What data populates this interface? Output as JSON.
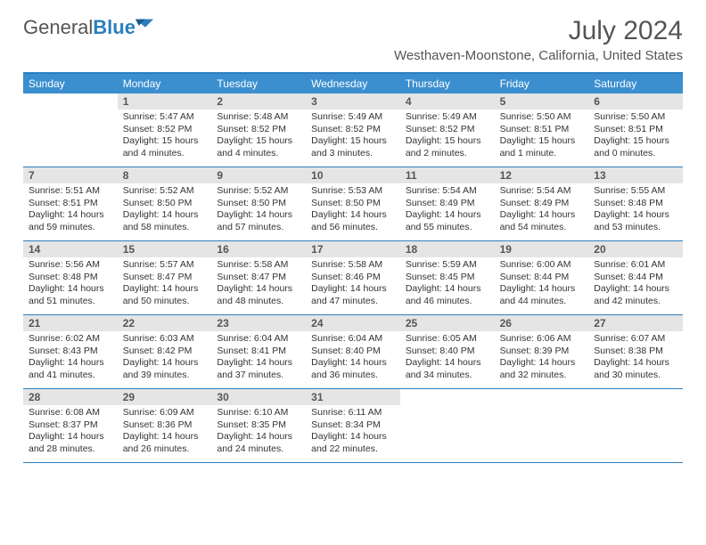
{
  "logo": {
    "part1": "General",
    "part2": "Blue"
  },
  "title": "July 2024",
  "location": "Westhaven-Moonstone, California, United States",
  "colors": {
    "accent": "#3b8fcf",
    "border": "#2b7fbf",
    "dayhead_bg": "#e5e5e5",
    "text": "#333333"
  },
  "dow": [
    "Sunday",
    "Monday",
    "Tuesday",
    "Wednesday",
    "Thursday",
    "Friday",
    "Saturday"
  ],
  "first_weekday_index": 1,
  "days_in_month": 31,
  "days": {
    "1": {
      "sunrise": "5:47 AM",
      "sunset": "8:52 PM",
      "daylight": "15 hours and 4 minutes."
    },
    "2": {
      "sunrise": "5:48 AM",
      "sunset": "8:52 PM",
      "daylight": "15 hours and 4 minutes."
    },
    "3": {
      "sunrise": "5:49 AM",
      "sunset": "8:52 PM",
      "daylight": "15 hours and 3 minutes."
    },
    "4": {
      "sunrise": "5:49 AM",
      "sunset": "8:52 PM",
      "daylight": "15 hours and 2 minutes."
    },
    "5": {
      "sunrise": "5:50 AM",
      "sunset": "8:51 PM",
      "daylight": "15 hours and 1 minute."
    },
    "6": {
      "sunrise": "5:50 AM",
      "sunset": "8:51 PM",
      "daylight": "15 hours and 0 minutes."
    },
    "7": {
      "sunrise": "5:51 AM",
      "sunset": "8:51 PM",
      "daylight": "14 hours and 59 minutes."
    },
    "8": {
      "sunrise": "5:52 AM",
      "sunset": "8:50 PM",
      "daylight": "14 hours and 58 minutes."
    },
    "9": {
      "sunrise": "5:52 AM",
      "sunset": "8:50 PM",
      "daylight": "14 hours and 57 minutes."
    },
    "10": {
      "sunrise": "5:53 AM",
      "sunset": "8:50 PM",
      "daylight": "14 hours and 56 minutes."
    },
    "11": {
      "sunrise": "5:54 AM",
      "sunset": "8:49 PM",
      "daylight": "14 hours and 55 minutes."
    },
    "12": {
      "sunrise": "5:54 AM",
      "sunset": "8:49 PM",
      "daylight": "14 hours and 54 minutes."
    },
    "13": {
      "sunrise": "5:55 AM",
      "sunset": "8:48 PM",
      "daylight": "14 hours and 53 minutes."
    },
    "14": {
      "sunrise": "5:56 AM",
      "sunset": "8:48 PM",
      "daylight": "14 hours and 51 minutes."
    },
    "15": {
      "sunrise": "5:57 AM",
      "sunset": "8:47 PM",
      "daylight": "14 hours and 50 minutes."
    },
    "16": {
      "sunrise": "5:58 AM",
      "sunset": "8:47 PM",
      "daylight": "14 hours and 48 minutes."
    },
    "17": {
      "sunrise": "5:58 AM",
      "sunset": "8:46 PM",
      "daylight": "14 hours and 47 minutes."
    },
    "18": {
      "sunrise": "5:59 AM",
      "sunset": "8:45 PM",
      "daylight": "14 hours and 46 minutes."
    },
    "19": {
      "sunrise": "6:00 AM",
      "sunset": "8:44 PM",
      "daylight": "14 hours and 44 minutes."
    },
    "20": {
      "sunrise": "6:01 AM",
      "sunset": "8:44 PM",
      "daylight": "14 hours and 42 minutes."
    },
    "21": {
      "sunrise": "6:02 AM",
      "sunset": "8:43 PM",
      "daylight": "14 hours and 41 minutes."
    },
    "22": {
      "sunrise": "6:03 AM",
      "sunset": "8:42 PM",
      "daylight": "14 hours and 39 minutes."
    },
    "23": {
      "sunrise": "6:04 AM",
      "sunset": "8:41 PM",
      "daylight": "14 hours and 37 minutes."
    },
    "24": {
      "sunrise": "6:04 AM",
      "sunset": "8:40 PM",
      "daylight": "14 hours and 36 minutes."
    },
    "25": {
      "sunrise": "6:05 AM",
      "sunset": "8:40 PM",
      "daylight": "14 hours and 34 minutes."
    },
    "26": {
      "sunrise": "6:06 AM",
      "sunset": "8:39 PM",
      "daylight": "14 hours and 32 minutes."
    },
    "27": {
      "sunrise": "6:07 AM",
      "sunset": "8:38 PM",
      "daylight": "14 hours and 30 minutes."
    },
    "28": {
      "sunrise": "6:08 AM",
      "sunset": "8:37 PM",
      "daylight": "14 hours and 28 minutes."
    },
    "29": {
      "sunrise": "6:09 AM",
      "sunset": "8:36 PM",
      "daylight": "14 hours and 26 minutes."
    },
    "30": {
      "sunrise": "6:10 AM",
      "sunset": "8:35 PM",
      "daylight": "14 hours and 24 minutes."
    },
    "31": {
      "sunrise": "6:11 AM",
      "sunset": "8:34 PM",
      "daylight": "14 hours and 22 minutes."
    }
  }
}
